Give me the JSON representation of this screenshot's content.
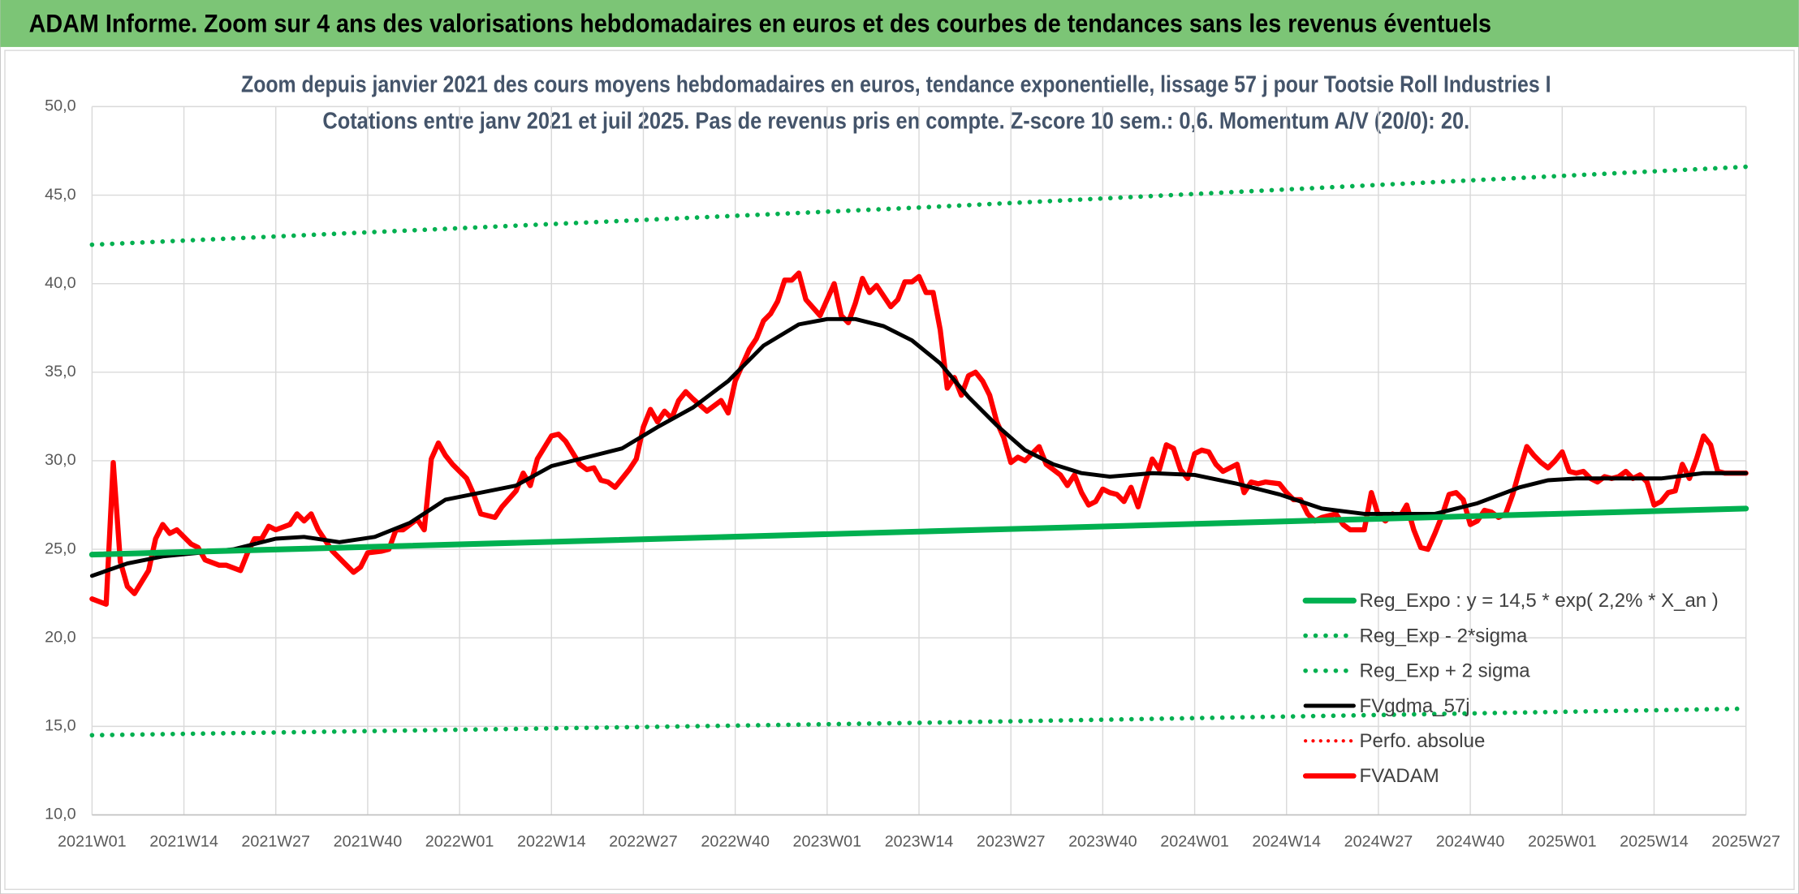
{
  "header": {
    "title": "ADAM Informe. Zoom sur 4 ans des valorisations hebdomadaires en euros et des courbes de tendances sans les revenus éventuels"
  },
  "chart_data": {
    "type": "line",
    "title": "Zoom depuis janvier 2021 des cours moyens hebdomadaires en euros, tendance exponentielle, lissage 57 j pour Tootsie Roll Industries I",
    "subtitle": "Cotations entre janv 2021 et juil 2025. Pas de revenus pris en compte. Z-score 10 sem.: 0,6. Momentum A/V (20/0): 20.",
    "xlim": [
      0,
      234
    ],
    "xticks": [
      {
        "value": 0,
        "label": "2021W01"
      },
      {
        "value": 13,
        "label": "2021W14"
      },
      {
        "value": 26,
        "label": "2021W27"
      },
      {
        "value": 39,
        "label": "2021W40"
      },
      {
        "value": 52,
        "label": "2022W01"
      },
      {
        "value": 65,
        "label": "2022W14"
      },
      {
        "value": 78,
        "label": "2022W27"
      },
      {
        "value": 91,
        "label": "2022W40"
      },
      {
        "value": 104,
        "label": "2023W01"
      },
      {
        "value": 117,
        "label": "2023W14"
      },
      {
        "value": 130,
        "label": "2023W27"
      },
      {
        "value": 143,
        "label": "2023W40"
      },
      {
        "value": 156,
        "label": "2024W01"
      },
      {
        "value": 169,
        "label": "2024W14"
      },
      {
        "value": 182,
        "label": "2024W27"
      },
      {
        "value": 195,
        "label": "2024W40"
      },
      {
        "value": 208,
        "label": "2025W01"
      },
      {
        "value": 221,
        "label": "2025W14"
      },
      {
        "value": 234,
        "label": "2025W27"
      }
    ],
    "ylim": [
      10,
      50
    ],
    "yticks": [
      {
        "value": 10,
        "label": "10,0"
      },
      {
        "value": 15,
        "label": "15,0"
      },
      {
        "value": 20,
        "label": "20,0"
      },
      {
        "value": 25,
        "label": "25,0"
      },
      {
        "value": 30,
        "label": "30,0"
      },
      {
        "value": 35,
        "label": "35,0"
      },
      {
        "value": 40,
        "label": "40,0"
      },
      {
        "value": 45,
        "label": "45,0"
      },
      {
        "value": 50,
        "label": "50,0"
      }
    ],
    "grid": true,
    "legend": "right",
    "series": [
      {
        "name": "Reg_Expo : y = 14,5 * exp( 2,2% *  X_an )",
        "color": "#00b050",
        "style": "solid",
        "width": 5,
        "x": [
          0,
          117,
          234
        ],
        "values": [
          24.7,
          26.0,
          27.3
        ]
      },
      {
        "name": "Reg_Exp - 2*sigma",
        "color": "#00b050",
        "style": "dotted",
        "width": 4,
        "x": [
          0,
          117,
          234
        ],
        "values": [
          14.5,
          15.2,
          16.0
        ]
      },
      {
        "name": "Reg_Exp + 2 sigma",
        "color": "#00b050",
        "style": "dotted",
        "width": 4,
        "x": [
          0,
          117,
          234
        ],
        "values": [
          42.2,
          44.3,
          46.6
        ]
      },
      {
        "name": "FVgdma_57j",
        "color": "#000000",
        "style": "solid",
        "width": 3.5,
        "x": [
          0,
          5,
          10,
          20,
          26,
          30,
          35,
          40,
          45,
          50,
          55,
          60,
          65,
          70,
          75,
          80,
          85,
          90,
          95,
          100,
          104,
          108,
          112,
          116,
          120,
          124,
          128,
          132,
          136,
          140,
          144,
          150,
          156,
          162,
          168,
          174,
          180,
          186,
          190,
          196,
          202,
          206,
          210,
          216,
          222,
          228,
          234
        ],
        "values": [
          23.5,
          24.2,
          24.6,
          25.0,
          25.6,
          25.7,
          25.4,
          25.7,
          26.5,
          27.8,
          28.2,
          28.6,
          29.7,
          30.2,
          30.7,
          31.9,
          33.0,
          34.5,
          36.5,
          37.7,
          38.0,
          38.0,
          37.6,
          36.8,
          35.5,
          33.6,
          32.0,
          30.6,
          29.8,
          29.3,
          29.1,
          29.3,
          29.2,
          28.7,
          28.1,
          27.3,
          27.0,
          27.0,
          27.0,
          27.6,
          28.5,
          28.9,
          29.0,
          29.0,
          29.0,
          29.3,
          29.3
        ]
      },
      {
        "name": "Perfo. absolue",
        "color": "#ff0000",
        "style": "dotted",
        "width": 3,
        "x": [],
        "values": []
      },
      {
        "name": "FVADAM",
        "color": "#ff0000",
        "style": "solid",
        "width": 4.5,
        "x": [
          0,
          2,
          3,
          4,
          5,
          6,
          8,
          9,
          10,
          11,
          12,
          14,
          15,
          16,
          18,
          19,
          21,
          22,
          23,
          24,
          25,
          26,
          28,
          29,
          30,
          31,
          32,
          34,
          35,
          37,
          38,
          39,
          41,
          42,
          43,
          44,
          46,
          47,
          48,
          49,
          50,
          51,
          53,
          54,
          55,
          57,
          58,
          60,
          61,
          62,
          63,
          65,
          66,
          67,
          69,
          70,
          71,
          72,
          73,
          74,
          76,
          77,
          78,
          79,
          80,
          81,
          82,
          83,
          84,
          85,
          87,
          88,
          89,
          90,
          91,
          93,
          94,
          95,
          96,
          97,
          98,
          99,
          100,
          101,
          103,
          104,
          105,
          106,
          107,
          108,
          109,
          110,
          111,
          113,
          114,
          115,
          116,
          117,
          118,
          119,
          120,
          121,
          122,
          123,
          124,
          125,
          126,
          127,
          128,
          129,
          130,
          131,
          132,
          134,
          135,
          136,
          137,
          138,
          139,
          140,
          141,
          142,
          143,
          144,
          145,
          146,
          147,
          148,
          149,
          150,
          151,
          152,
          153,
          154,
          155,
          156,
          157,
          158,
          159,
          160,
          162,
          163,
          164,
          165,
          166,
          168,
          169,
          170,
          171,
          172,
          173,
          174,
          176,
          177,
          178,
          179,
          180,
          181,
          182,
          183,
          184,
          185,
          186,
          187,
          188,
          189,
          190,
          191,
          192,
          193,
          194,
          195,
          196,
          197,
          198,
          199,
          200,
          201,
          202,
          203,
          204,
          205,
          206,
          207,
          208,
          209,
          210,
          211,
          212,
          213,
          214,
          215,
          216,
          217,
          218,
          219,
          220,
          221,
          222,
          223,
          224,
          225,
          226,
          227,
          228,
          229,
          230,
          231,
          234
        ],
        "values": [
          22.2,
          21.9,
          29.9,
          24.3,
          22.9,
          22.5,
          23.8,
          25.6,
          26.4,
          25.9,
          26.1,
          25.3,
          25.1,
          24.4,
          24.1,
          24.1,
          23.8,
          24.8,
          25.6,
          25.6,
          26.3,
          26.1,
          26.4,
          27.0,
          26.6,
          27.0,
          26.1,
          24.9,
          24.5,
          23.7,
          24.0,
          24.8,
          24.9,
          25.0,
          26.1,
          26.1,
          26.7,
          26.1,
          30.1,
          31.0,
          30.3,
          29.8,
          29.0,
          28.1,
          27.0,
          26.8,
          27.4,
          28.3,
          29.3,
          28.6,
          30.1,
          31.4,
          31.5,
          31.1,
          29.8,
          29.5,
          29.6,
          28.9,
          28.8,
          28.5,
          29.5,
          30.1,
          31.9,
          32.9,
          32.2,
          32.8,
          32.4,
          33.4,
          33.9,
          33.5,
          32.8,
          33.1,
          33.4,
          32.7,
          34.5,
          36.3,
          36.9,
          37.9,
          38.3,
          39.0,
          40.2,
          40.2,
          40.6,
          39.1,
          38.2,
          39.1,
          40.0,
          38.2,
          37.8,
          38.9,
          40.3,
          39.5,
          39.9,
          38.7,
          39.1,
          40.1,
          40.1,
          40.4,
          39.5,
          39.5,
          37.4,
          34.1,
          34.7,
          33.7,
          34.8,
          35.0,
          34.5,
          33.7,
          32.2,
          31.3,
          29.9,
          30.2,
          30.0,
          30.8,
          29.8,
          29.5,
          29.2,
          28.6,
          29.2,
          28.2,
          27.5,
          27.7,
          28.4,
          28.2,
          28.1,
          27.7,
          28.5,
          27.4,
          28.8,
          30.1,
          29.5,
          30.9,
          30.7,
          29.5,
          29.0,
          30.4,
          30.6,
          30.5,
          29.8,
          29.4,
          29.8,
          28.2,
          28.8,
          28.7,
          28.8,
          28.7,
          28.2,
          27.8,
          27.8,
          27.0,
          26.6,
          26.8,
          27.0,
          26.4,
          26.1,
          26.1,
          26.1,
          28.2,
          26.9,
          26.6,
          27.0,
          26.8,
          27.5,
          26.1,
          25.1,
          25.0,
          25.9,
          26.9,
          28.1,
          28.2,
          27.8,
          26.4,
          26.6,
          27.2,
          27.1,
          26.8,
          27.0,
          28.1,
          29.5,
          30.8,
          30.3,
          29.9,
          29.6,
          30.0,
          30.5,
          29.4,
          29.3,
          29.4,
          29.0,
          28.8,
          29.1,
          29.0,
          29.1,
          29.4,
          29.0,
          29.2,
          28.8,
          27.5,
          27.7,
          28.2,
          28.3,
          29.8,
          29.0,
          30.1,
          31.4,
          30.9,
          29.4,
          29.3,
          29.3
        ]
      }
    ]
  }
}
